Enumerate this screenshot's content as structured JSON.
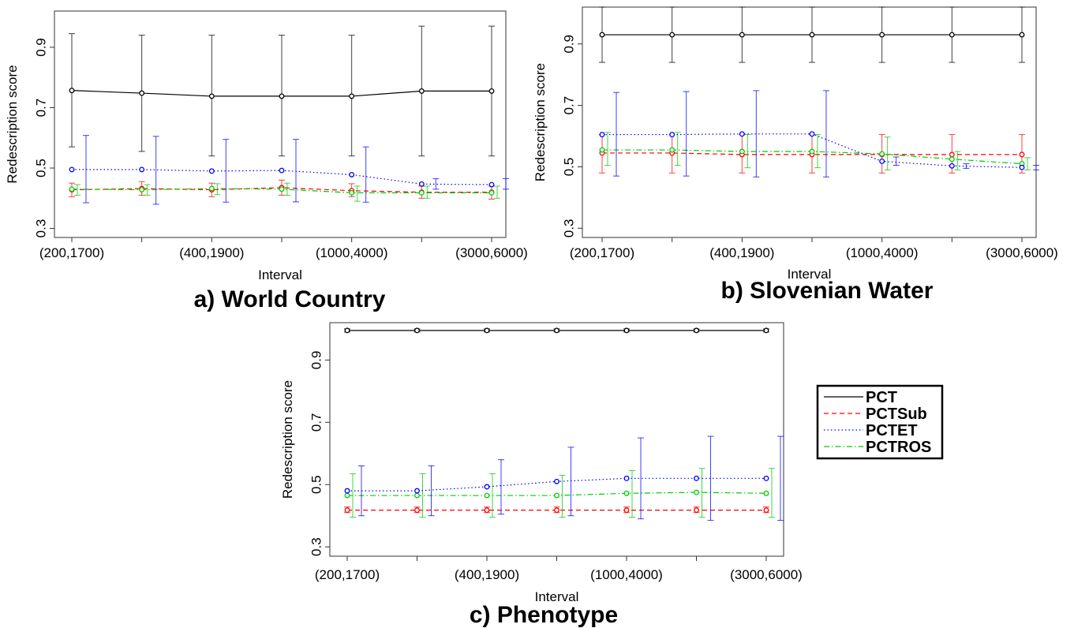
{
  "legend": {
    "entries": [
      {
        "name": "PCT",
        "color": "#000000",
        "dash": "solid"
      },
      {
        "name": "PCTSub",
        "color": "#ff0000",
        "dash": "dashed"
      },
      {
        "name": "PCTET",
        "color": "#0000ff",
        "dash": "dotted"
      },
      {
        "name": "PCTROS",
        "color": "#00cc00",
        "dash": "dotdash"
      }
    ]
  },
  "chart_data": [
    {
      "type": "line",
      "title": "a) World Country",
      "xlabel": "Interval",
      "ylabel": "Redescription score",
      "x_tick_labels": [
        "(200,1700)",
        "(400,1900)",
        "(1000,4000)",
        "(3000,6000)"
      ],
      "y_ticks": [
        "0.3",
        "0.5",
        "0.7",
        "0.9"
      ],
      "ylim": [
        0.27,
        1.02
      ],
      "n_points": 7,
      "error_bars": true,
      "series": [
        {
          "name": "PCT",
          "values": [
            0.757,
            0.748,
            0.738,
            0.738,
            0.738,
            0.755,
            0.755
          ],
          "lower": [
            0.57,
            0.555,
            0.54,
            0.54,
            0.54,
            0.54,
            0.54
          ],
          "upper": [
            0.945,
            0.94,
            0.94,
            0.94,
            0.94,
            0.97,
            0.97
          ]
        },
        {
          "name": "PCTSub",
          "values": [
            0.428,
            0.432,
            0.428,
            0.435,
            0.425,
            0.42,
            0.42
          ],
          "lower": [
            0.405,
            0.41,
            0.405,
            0.41,
            0.405,
            0.4,
            0.397
          ],
          "upper": [
            0.45,
            0.455,
            0.45,
            0.46,
            0.448,
            0.44,
            0.44
          ]
        },
        {
          "name": "PCTET",
          "values": [
            0.495,
            0.495,
            0.49,
            0.492,
            0.478,
            0.447,
            0.445
          ],
          "lower": [
            0.385,
            0.38,
            0.387,
            0.388,
            0.387,
            0.43,
            0.43
          ],
          "upper": [
            0.608,
            0.605,
            0.595,
            0.595,
            0.57,
            0.465,
            0.465
          ]
        },
        {
          "name": "PCTROS",
          "values": [
            0.43,
            0.428,
            0.432,
            0.43,
            0.418,
            0.418,
            0.418
          ],
          "lower": [
            0.41,
            0.41,
            0.412,
            0.41,
            0.39,
            0.4,
            0.4
          ],
          "upper": [
            0.445,
            0.445,
            0.448,
            0.45,
            0.44,
            0.44,
            0.44
          ]
        }
      ]
    },
    {
      "type": "line",
      "title": "b) Slovenian Water",
      "xlabel": "Interval",
      "ylabel": "Redescription score",
      "x_tick_labels": [
        "(200,1700)",
        "(400,1900)",
        "(1000,4000)",
        "(3000,6000)"
      ],
      "y_ticks": [
        "0.3",
        "0.5",
        "0.7",
        "0.9"
      ],
      "ylim": [
        0.27,
        1.02
      ],
      "n_points": 7,
      "error_bars": true,
      "series": [
        {
          "name": "PCT",
          "values": [
            0.93,
            0.93,
            0.93,
            0.93,
            0.93,
            0.93,
            0.93
          ],
          "lower": [
            0.84,
            0.84,
            0.84,
            0.84,
            0.84,
            0.84,
            0.84
          ],
          "upper": [
            1.02,
            1.02,
            1.02,
            1.02,
            1.02,
            1.02,
            1.02
          ]
        },
        {
          "name": "PCTSub",
          "values": [
            0.545,
            0.545,
            0.54,
            0.54,
            0.54,
            0.54,
            0.54
          ],
          "lower": [
            0.48,
            0.48,
            0.48,
            0.48,
            0.48,
            0.48,
            0.48
          ],
          "upper": [
            0.605,
            0.605,
            0.605,
            0.605,
            0.605,
            0.605,
            0.605
          ]
        },
        {
          "name": "PCTET",
          "values": [
            0.605,
            0.605,
            0.607,
            0.607,
            0.518,
            0.503,
            0.498
          ],
          "lower": [
            0.47,
            0.47,
            0.467,
            0.467,
            0.505,
            0.495,
            0.49
          ],
          "upper": [
            0.742,
            0.745,
            0.748,
            0.748,
            0.532,
            0.51,
            0.505
          ]
        },
        {
          "name": "PCTROS",
          "values": [
            0.555,
            0.555,
            0.55,
            0.55,
            0.542,
            0.525,
            0.51
          ],
          "lower": [
            0.505,
            0.505,
            0.497,
            0.497,
            0.49,
            0.49,
            0.49
          ],
          "upper": [
            0.612,
            0.612,
            0.605,
            0.605,
            0.597,
            0.55,
            0.53
          ]
        }
      ]
    },
    {
      "type": "line",
      "title": "c) Phenotype",
      "xlabel": "Interval",
      "ylabel": "Redescription score",
      "x_tick_labels": [
        "(200,1700)",
        "(400,1900)",
        "(1000,4000)",
        "(3000,6000)"
      ],
      "y_ticks": [
        "0.3",
        "0.5",
        "0.7",
        "0.9"
      ],
      "ylim": [
        0.27,
        1.02
      ],
      "n_points": 7,
      "error_bars": true,
      "series": [
        {
          "name": "PCT",
          "values": [
            0.995,
            0.995,
            0.995,
            0.995,
            0.995,
            0.995,
            0.995
          ],
          "lower": [
            0.99,
            0.99,
            0.99,
            0.99,
            0.99,
            0.99,
            0.99
          ],
          "upper": [
            1.0,
            1.0,
            1.0,
            1.0,
            1.0,
            1.0,
            1.0
          ]
        },
        {
          "name": "PCTSub",
          "values": [
            0.418,
            0.418,
            0.418,
            0.418,
            0.418,
            0.418,
            0.418
          ],
          "lower": [
            0.41,
            0.41,
            0.41,
            0.41,
            0.41,
            0.41,
            0.41
          ],
          "upper": [
            0.428,
            0.428,
            0.428,
            0.428,
            0.428,
            0.428,
            0.428
          ]
        },
        {
          "name": "PCTET",
          "values": [
            0.48,
            0.48,
            0.493,
            0.51,
            0.52,
            0.52,
            0.52
          ],
          "lower": [
            0.4,
            0.4,
            0.405,
            0.4,
            0.39,
            0.385,
            0.385
          ],
          "upper": [
            0.56,
            0.56,
            0.58,
            0.62,
            0.65,
            0.655,
            0.655
          ]
        },
        {
          "name": "PCTROS",
          "values": [
            0.465,
            0.465,
            0.465,
            0.465,
            0.472,
            0.475,
            0.472
          ],
          "lower": [
            0.395,
            0.395,
            0.395,
            0.395,
            0.395,
            0.395,
            0.395
          ],
          "upper": [
            0.535,
            0.535,
            0.535,
            0.53,
            0.545,
            0.552,
            0.552
          ]
        }
      ]
    }
  ]
}
